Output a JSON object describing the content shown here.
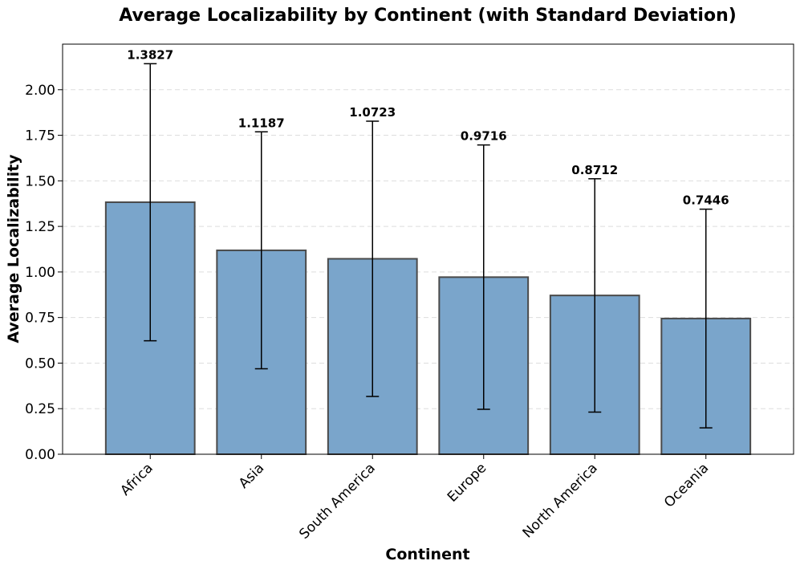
{
  "chart_data": {
    "type": "bar",
    "title": "Average Localizability by Continent (with Standard Deviation)",
    "xlabel": "Continent",
    "ylabel": "Average Localizability",
    "categories": [
      "Africa",
      "Asia",
      "South America",
      "Europe",
      "North America",
      "Oceania"
    ],
    "values": [
      1.3827,
      1.1187,
      1.0723,
      0.9716,
      0.8712,
      0.7446
    ],
    "value_labels": [
      "1.3827",
      "1.1187",
      "1.0723",
      "0.9716",
      "0.8712",
      "0.7446"
    ],
    "error_bars": [
      0.76,
      0.65,
      0.755,
      0.725,
      0.64,
      0.6
    ],
    "ylim": [
      0,
      2.25
    ],
    "yticks": [
      0.0,
      0.25,
      0.5,
      0.75,
      1.0,
      1.25,
      1.5,
      1.75,
      2.0
    ],
    "ytick_labels": [
      "0.00",
      "0.25",
      "0.50",
      "0.75",
      "1.00",
      "1.25",
      "1.50",
      "1.75",
      "2.00"
    ],
    "grid": "y-dashed",
    "colors": {
      "bar_fill": "#7aa5cb",
      "bar_edge": "#4a4a4a",
      "error_bar": "#000000",
      "grid": "#dddddd",
      "axis": "#000000"
    }
  }
}
